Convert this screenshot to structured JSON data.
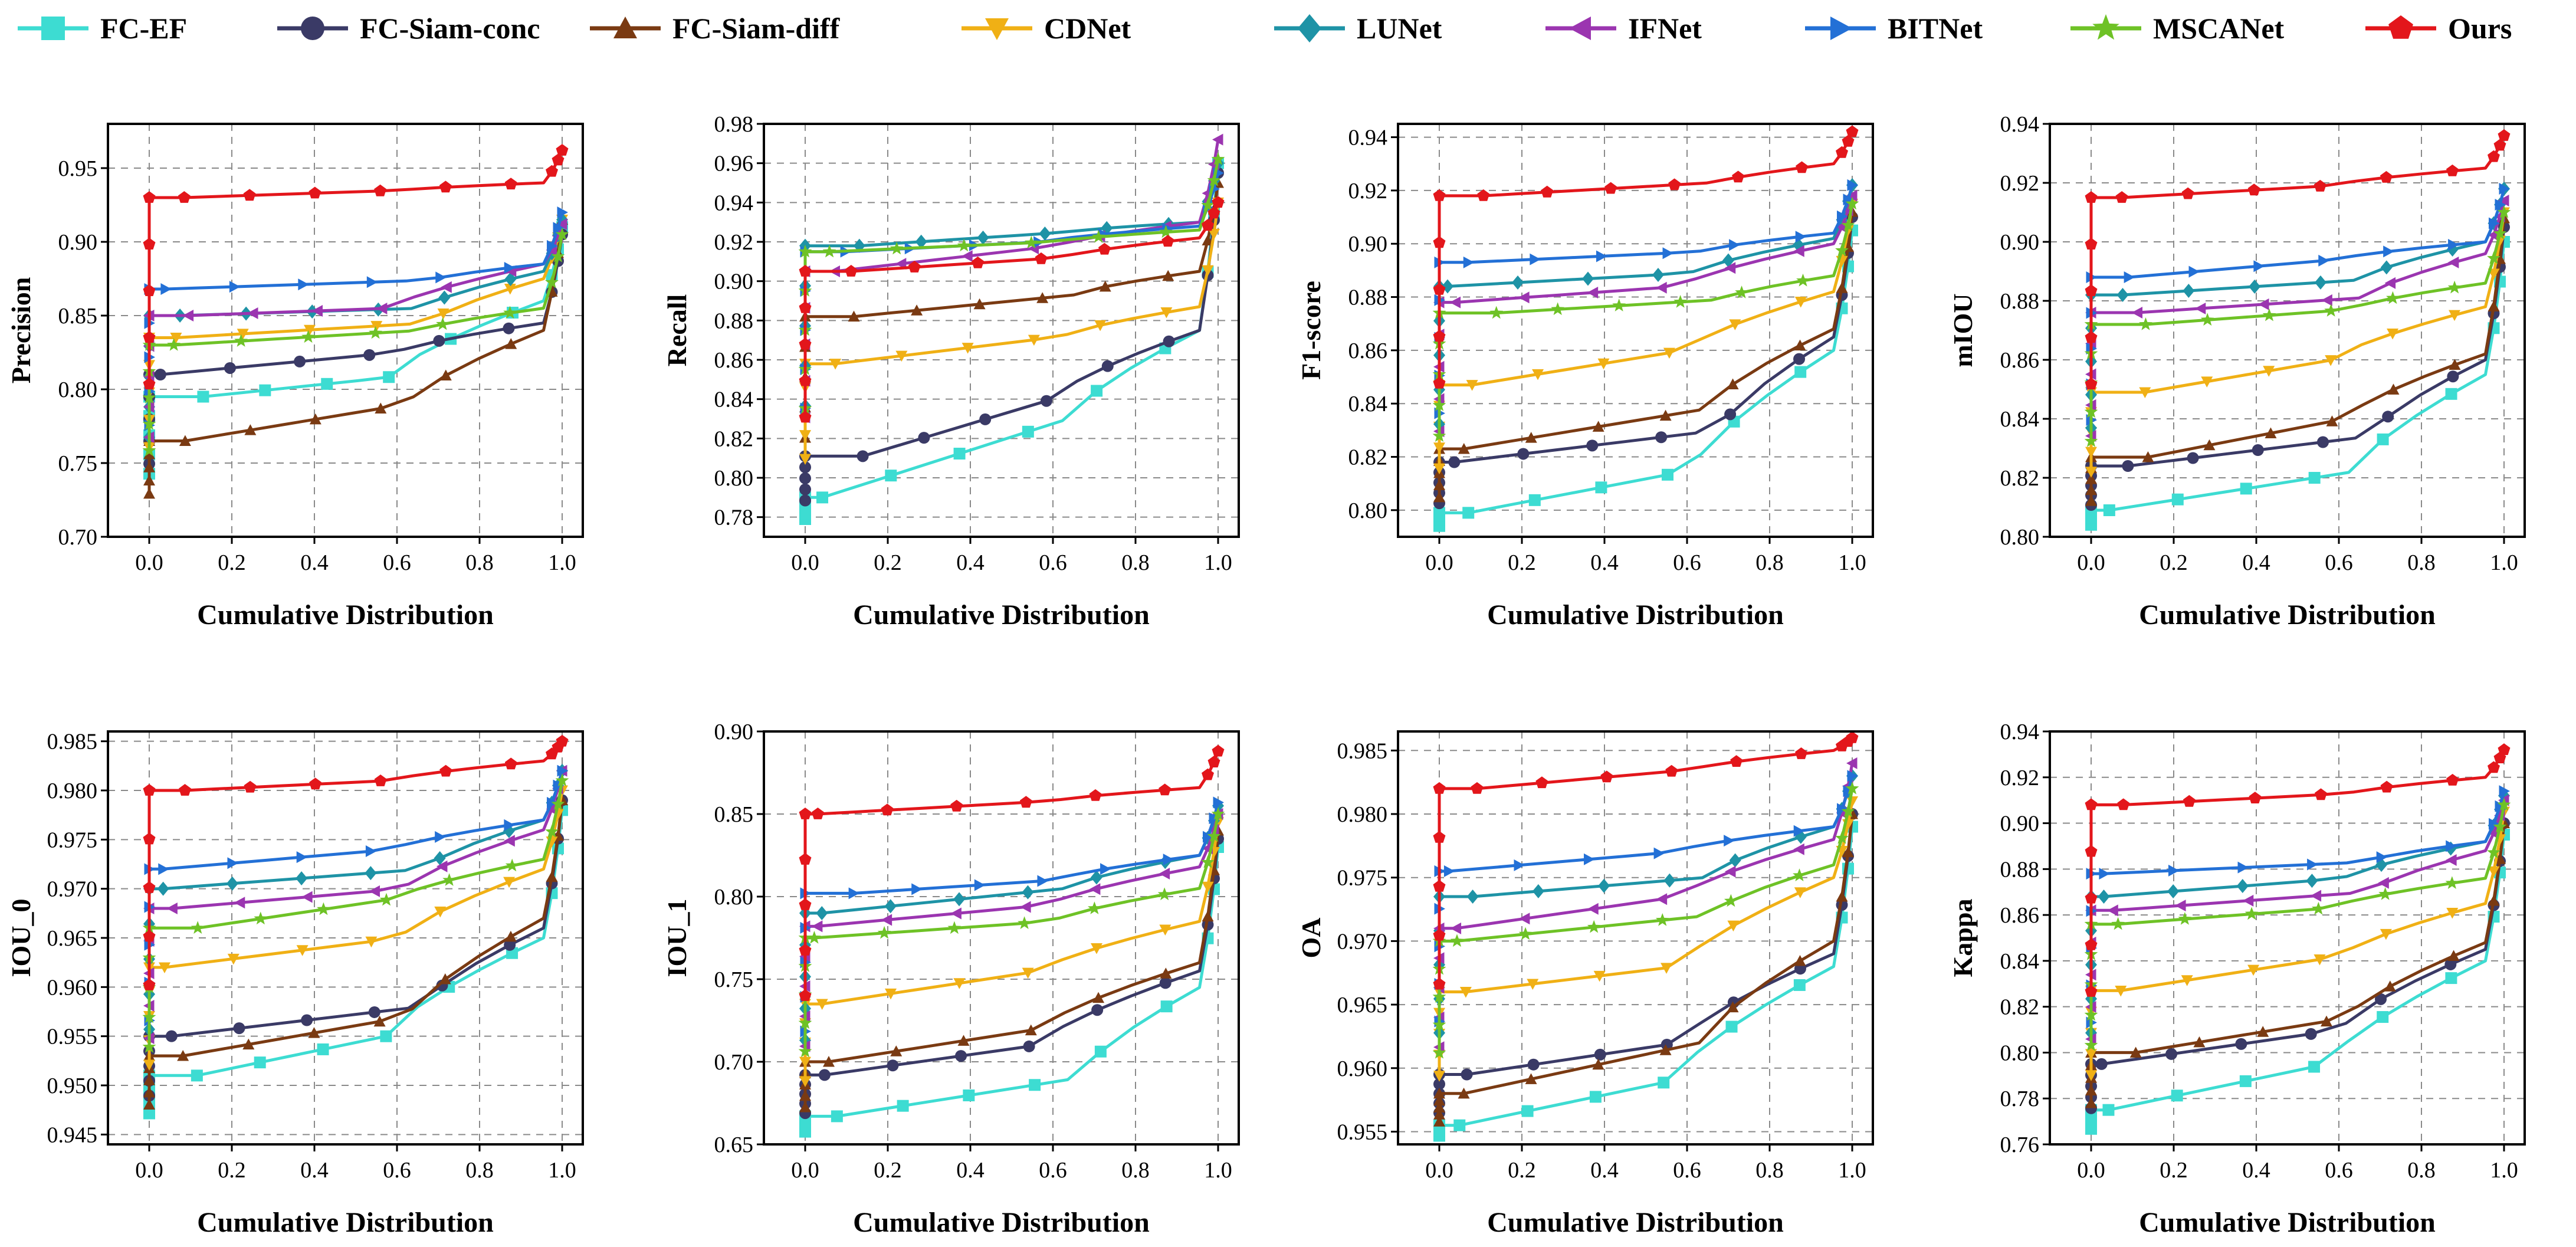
{
  "legend": [
    {
      "name": "FC-EF",
      "color": "#3ddcd2",
      "marker": "square"
    },
    {
      "name": "FC-Siam-conc",
      "color": "#3a3a66",
      "marker": "circle"
    },
    {
      "name": "FC-Siam-diff",
      "color": "#7a3a12",
      "marker": "triangle-up"
    },
    {
      "name": "CDNet",
      "color": "#f0b015",
      "marker": "triangle-down"
    },
    {
      "name": "LUNet",
      "color": "#1e93a6",
      "marker": "diamond"
    },
    {
      "name": "IFNet",
      "color": "#9b35b0",
      "marker": "triangle-left"
    },
    {
      "name": "BITNet",
      "color": "#2370d6",
      "marker": "triangle-right"
    },
    {
      "name": "MSCANet",
      "color": "#6ec226",
      "marker": "star"
    },
    {
      "name": "Ours",
      "color": "#e3161b",
      "marker": "pentagon"
    }
  ],
  "chart_data": [
    {
      "type": "line",
      "ylabel": "Precision",
      "xlabel": "Cumulative Distribution",
      "xlim": [
        -0.1,
        1.05
      ],
      "ylim": [
        0.7,
        0.98
      ],
      "xticks": [
        "0.0",
        "0.2",
        "0.4",
        "0.6",
        "0.8",
        "1.0"
      ],
      "yticks": [
        "0.70",
        "0.75",
        "0.80",
        "0.85",
        "0.90",
        "0.95"
      ],
      "series": [
        {
          "name": "FC-EF",
          "start": 0.795,
          "mid": 0.808,
          "end": 0.86,
          "peak": 0.91
        },
        {
          "name": "FC-Siam-conc",
          "start": 0.81,
          "mid": 0.825,
          "end": 0.845,
          "peak": 0.905
        },
        {
          "name": "FC-Siam-diff",
          "start": 0.765,
          "mid": 0.79,
          "end": 0.84,
          "peak": 0.915
        },
        {
          "name": "CDNet",
          "start": 0.835,
          "mid": 0.845,
          "end": 0.875,
          "peak": 0.915
        },
        {
          "name": "LUNet",
          "start": 0.85,
          "mid": 0.855,
          "end": 0.88,
          "peak": 0.915
        },
        {
          "name": "IFNet",
          "start": 0.85,
          "mid": 0.855,
          "end": 0.885,
          "peak": 0.912
        },
        {
          "name": "BITNet",
          "start": 0.868,
          "mid": 0.874,
          "end": 0.885,
          "peak": 0.92
        },
        {
          "name": "MSCANet",
          "start": 0.83,
          "mid": 0.84,
          "end": 0.855,
          "peak": 0.905
        },
        {
          "name": "Ours",
          "start": 0.93,
          "mid": 0.935,
          "end": 0.94,
          "peak": 0.962
        }
      ]
    },
    {
      "type": "line",
      "ylabel": "Recall",
      "xlabel": "Cumulative Distribution",
      "xlim": [
        -0.1,
        1.05
      ],
      "ylim": [
        0.77,
        0.98
      ],
      "xticks": [
        "0.0",
        "0.2",
        "0.4",
        "0.6",
        "0.8",
        "1.0"
      ],
      "yticks": [
        "0.78",
        "0.80",
        "0.82",
        "0.84",
        "0.86",
        "0.88",
        "0.90",
        "0.92",
        "0.94",
        "0.96",
        "0.98"
      ],
      "series": [
        {
          "name": "FC-EF",
          "start": 0.79,
          "mid": 0.83,
          "end": 0.875,
          "peak": 0.96
        },
        {
          "name": "FC-Siam-conc",
          "start": 0.811,
          "mid": 0.84,
          "end": 0.875,
          "peak": 0.955
        },
        {
          "name": "FC-Siam-diff",
          "start": 0.882,
          "mid": 0.893,
          "end": 0.905,
          "peak": 0.95
        },
        {
          "name": "CDNet",
          "start": 0.858,
          "mid": 0.872,
          "end": 0.887,
          "peak": 0.94
        },
        {
          "name": "LUNet",
          "start": 0.918,
          "mid": 0.925,
          "end": 0.93,
          "peak": 0.96
        },
        {
          "name": "IFNet",
          "start": 0.905,
          "mid": 0.918,
          "end": 0.93,
          "peak": 0.972
        },
        {
          "name": "BITNet",
          "start": 0.915,
          "mid": 0.92,
          "end": 0.928,
          "peak": 0.955
        },
        {
          "name": "MSCANet",
          "start": 0.915,
          "mid": 0.92,
          "end": 0.926,
          "peak": 0.962
        },
        {
          "name": "Ours",
          "start": 0.905,
          "mid": 0.912,
          "end": 0.922,
          "peak": 0.94
        }
      ]
    },
    {
      "type": "line",
      "ylabel": "F1-score",
      "xlabel": "Cumulative Distribution",
      "xlim": [
        -0.1,
        1.05
      ],
      "ylim": [
        0.79,
        0.945
      ],
      "xticks": [
        "0.0",
        "0.2",
        "0.4",
        "0.6",
        "0.8",
        "1.0"
      ],
      "yticks": [
        "0.80",
        "0.82",
        "0.84",
        "0.86",
        "0.88",
        "0.90",
        "0.92",
        "0.94"
      ],
      "series": [
        {
          "name": "FC-EF",
          "start": 0.799,
          "mid": 0.815,
          "end": 0.86,
          "peak": 0.905
        },
        {
          "name": "FC-Siam-conc",
          "start": 0.818,
          "mid": 0.83,
          "end": 0.865,
          "peak": 0.91
        },
        {
          "name": "FC-Siam-diff",
          "start": 0.823,
          "mid": 0.838,
          "end": 0.868,
          "peak": 0.912
        },
        {
          "name": "CDNet",
          "start": 0.847,
          "mid": 0.86,
          "end": 0.882,
          "peak": 0.915
        },
        {
          "name": "LUNet",
          "start": 0.884,
          "mid": 0.889,
          "end": 0.902,
          "peak": 0.922
        },
        {
          "name": "IFNet",
          "start": 0.878,
          "mid": 0.884,
          "end": 0.9,
          "peak": 0.918
        },
        {
          "name": "BITNet",
          "start": 0.893,
          "mid": 0.897,
          "end": 0.904,
          "peak": 0.922
        },
        {
          "name": "MSCANet",
          "start": 0.874,
          "mid": 0.879,
          "end": 0.888,
          "peak": 0.915
        },
        {
          "name": "Ours",
          "start": 0.918,
          "mid": 0.923,
          "end": 0.93,
          "peak": 0.942
        }
      ]
    },
    {
      "type": "line",
      "ylabel": "mIOU",
      "xlabel": "Cumulative Distribution",
      "xlim": [
        -0.1,
        1.05
      ],
      "ylim": [
        0.8,
        0.94
      ],
      "xticks": [
        "0.0",
        "0.2",
        "0.4",
        "0.6",
        "0.8",
        "1.0"
      ],
      "yticks": [
        "0.80",
        "0.82",
        "0.84",
        "0.86",
        "0.88",
        "0.90",
        "0.92",
        "0.94"
      ],
      "series": [
        {
          "name": "FC-EF",
          "start": 0.809,
          "mid": 0.822,
          "end": 0.855,
          "peak": 0.9
        },
        {
          "name": "FC-Siam-conc",
          "start": 0.824,
          "mid": 0.834,
          "end": 0.86,
          "peak": 0.905
        },
        {
          "name": "FC-Siam-diff",
          "start": 0.827,
          "mid": 0.84,
          "end": 0.862,
          "peak": 0.908
        },
        {
          "name": "CDNet",
          "start": 0.849,
          "mid": 0.86,
          "end": 0.878,
          "peak": 0.91
        },
        {
          "name": "LUNet",
          "start": 0.882,
          "mid": 0.887,
          "end": 0.9,
          "peak": 0.918
        },
        {
          "name": "IFNet",
          "start": 0.876,
          "mid": 0.881,
          "end": 0.896,
          "peak": 0.914
        },
        {
          "name": "BITNet",
          "start": 0.888,
          "mid": 0.894,
          "end": 0.9,
          "peak": 0.918
        },
        {
          "name": "MSCANet",
          "start": 0.872,
          "mid": 0.877,
          "end": 0.886,
          "peak": 0.91
        },
        {
          "name": "Ours",
          "start": 0.915,
          "mid": 0.919,
          "end": 0.925,
          "peak": 0.936
        }
      ]
    },
    {
      "type": "line",
      "ylabel": "IOU_0",
      "xlabel": "Cumulative Distribution",
      "xlim": [
        -0.1,
        1.05
      ],
      "ylim": [
        0.944,
        0.986
      ],
      "xticks": [
        "0.0",
        "0.2",
        "0.4",
        "0.6",
        "0.8",
        "1.0"
      ],
      "yticks": [
        "0.945",
        "0.950",
        "0.955",
        "0.960",
        "0.965",
        "0.970",
        "0.975",
        "0.980",
        "0.985"
      ],
      "series": [
        {
          "name": "FC-EF",
          "start": 0.951,
          "mid": 0.955,
          "end": 0.965,
          "peak": 0.978
        },
        {
          "name": "FC-Siam-conc",
          "start": 0.955,
          "mid": 0.958,
          "end": 0.966,
          "peak": 0.979
        },
        {
          "name": "FC-Siam-diff",
          "start": 0.953,
          "mid": 0.957,
          "end": 0.967,
          "peak": 0.979
        },
        {
          "name": "CDNet",
          "start": 0.962,
          "mid": 0.965,
          "end": 0.972,
          "peak": 0.98
        },
        {
          "name": "LUNet",
          "start": 0.97,
          "mid": 0.972,
          "end": 0.977,
          "peak": 0.982
        },
        {
          "name": "IFNet",
          "start": 0.968,
          "mid": 0.97,
          "end": 0.976,
          "peak": 0.982
        },
        {
          "name": "BITNet",
          "start": 0.972,
          "mid": 0.974,
          "end": 0.977,
          "peak": 0.982
        },
        {
          "name": "MSCANet",
          "start": 0.966,
          "mid": 0.969,
          "end": 0.973,
          "peak": 0.981
        },
        {
          "name": "Ours",
          "start": 0.98,
          "mid": 0.981,
          "end": 0.983,
          "peak": 0.985
        }
      ]
    },
    {
      "type": "line",
      "ylabel": "IOU_1",
      "xlabel": "Cumulative Distribution",
      "xlim": [
        -0.1,
        1.05
      ],
      "ylim": [
        0.65,
        0.9
      ],
      "xticks": [
        "0.0",
        "0.2",
        "0.4",
        "0.6",
        "0.8",
        "1.0"
      ],
      "yticks": [
        "0.65",
        "0.70",
        "0.75",
        "0.80",
        "0.85",
        "0.90"
      ],
      "series": [
        {
          "name": "FC-EF",
          "start": 0.667,
          "mid": 0.69,
          "end": 0.745,
          "peak": 0.83
        },
        {
          "name": "FC-Siam-conc",
          "start": 0.692,
          "mid": 0.71,
          "end": 0.755,
          "peak": 0.835
        },
        {
          "name": "FC-Siam-diff",
          "start": 0.7,
          "mid": 0.72,
          "end": 0.76,
          "peak": 0.84
        },
        {
          "name": "CDNet",
          "start": 0.735,
          "mid": 0.755,
          "end": 0.785,
          "peak": 0.845
        },
        {
          "name": "LUNet",
          "start": 0.79,
          "mid": 0.805,
          "end": 0.825,
          "peak": 0.855
        },
        {
          "name": "IFNet",
          "start": 0.782,
          "mid": 0.795,
          "end": 0.818,
          "peak": 0.85
        },
        {
          "name": "BITNet",
          "start": 0.802,
          "mid": 0.81,
          "end": 0.825,
          "peak": 0.857
        },
        {
          "name": "MSCANet",
          "start": 0.775,
          "mid": 0.785,
          "end": 0.805,
          "peak": 0.85
        },
        {
          "name": "Ours",
          "start": 0.85,
          "mid": 0.858,
          "end": 0.866,
          "peak": 0.888
        }
      ]
    },
    {
      "type": "line",
      "ylabel": "OA",
      "xlabel": "Cumulative Distribution",
      "xlim": [
        -0.1,
        1.05
      ],
      "ylim": [
        0.954,
        0.9865
      ],
      "xticks": [
        "0.0",
        "0.2",
        "0.4",
        "0.6",
        "0.8",
        "1.0"
      ],
      "yticks": [
        "0.955",
        "0.960",
        "0.965",
        "0.970",
        "0.975",
        "0.980",
        "0.985"
      ],
      "series": [
        {
          "name": "FC-EF",
          "start": 0.9555,
          "mid": 0.959,
          "end": 0.968,
          "peak": 0.979
        },
        {
          "name": "FC-Siam-conc",
          "start": 0.9595,
          "mid": 0.962,
          "end": 0.969,
          "peak": 0.98
        },
        {
          "name": "FC-Siam-diff",
          "start": 0.958,
          "mid": 0.962,
          "end": 0.97,
          "peak": 0.98
        },
        {
          "name": "CDNet",
          "start": 0.966,
          "mid": 0.968,
          "end": 0.975,
          "peak": 0.981
        },
        {
          "name": "LUNet",
          "start": 0.9735,
          "mid": 0.975,
          "end": 0.979,
          "peak": 0.983
        },
        {
          "name": "IFNet",
          "start": 0.971,
          "mid": 0.9735,
          "end": 0.978,
          "peak": 0.984
        },
        {
          "name": "BITNet",
          "start": 0.9755,
          "mid": 0.977,
          "end": 0.979,
          "peak": 0.983
        },
        {
          "name": "MSCANet",
          "start": 0.97,
          "mid": 0.972,
          "end": 0.976,
          "peak": 0.982
        },
        {
          "name": "Ours",
          "start": 0.982,
          "mid": 0.9835,
          "end": 0.985,
          "peak": 0.986
        }
      ]
    },
    {
      "type": "line",
      "ylabel": "Kappa",
      "xlabel": "Cumulative Distribution",
      "xlim": [
        -0.1,
        1.05
      ],
      "ylim": [
        0.76,
        0.94
      ],
      "xticks": [
        "0.0",
        "0.2",
        "0.4",
        "0.6",
        "0.8",
        "1.0"
      ],
      "yticks": [
        "0.76",
        "0.78",
        "0.80",
        "0.82",
        "0.84",
        "0.86",
        "0.88",
        "0.90",
        "0.92",
        "0.94"
      ],
      "series": [
        {
          "name": "FC-EF",
          "start": 0.775,
          "mid": 0.795,
          "end": 0.84,
          "peak": 0.895
        },
        {
          "name": "FC-Siam-conc",
          "start": 0.795,
          "mid": 0.81,
          "end": 0.845,
          "peak": 0.9
        },
        {
          "name": "FC-Siam-diff",
          "start": 0.8,
          "mid": 0.815,
          "end": 0.848,
          "peak": 0.9
        },
        {
          "name": "CDNet",
          "start": 0.827,
          "mid": 0.842,
          "end": 0.865,
          "peak": 0.905
        },
        {
          "name": "LUNet",
          "start": 0.868,
          "mid": 0.876,
          "end": 0.892,
          "peak": 0.912
        },
        {
          "name": "IFNet",
          "start": 0.862,
          "mid": 0.87,
          "end": 0.888,
          "peak": 0.91
        },
        {
          "name": "BITNet",
          "start": 0.878,
          "mid": 0.883,
          "end": 0.892,
          "peak": 0.914
        },
        {
          "name": "MSCANet",
          "start": 0.856,
          "mid": 0.863,
          "end": 0.876,
          "peak": 0.908
        },
        {
          "name": "Ours",
          "start": 0.908,
          "mid": 0.913,
          "end": 0.92,
          "peak": 0.932
        }
      ]
    }
  ]
}
